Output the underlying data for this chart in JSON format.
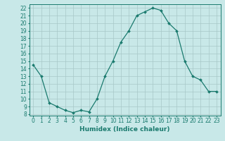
{
  "x": [
    0,
    1,
    2,
    3,
    4,
    5,
    6,
    7,
    8,
    9,
    10,
    11,
    12,
    13,
    14,
    15,
    16,
    17,
    18,
    19,
    20,
    21,
    22,
    23
  ],
  "y": [
    14.5,
    13.0,
    9.5,
    9.0,
    8.5,
    8.2,
    8.5,
    8.3,
    10.0,
    13.0,
    15.0,
    17.5,
    19.0,
    21.0,
    21.5,
    22.0,
    21.7,
    20.0,
    19.0,
    15.0,
    13.0,
    12.5,
    11.0,
    11.0
  ],
  "xlabel": "Humidex (Indice chaleur)",
  "xlim": [
    -0.5,
    23.5
  ],
  "ylim": [
    7.8,
    22.5
  ],
  "yticks": [
    8,
    9,
    10,
    11,
    12,
    13,
    14,
    15,
    16,
    17,
    18,
    19,
    20,
    21,
    22
  ],
  "xticks": [
    0,
    1,
    2,
    3,
    4,
    5,
    6,
    7,
    8,
    9,
    10,
    11,
    12,
    13,
    14,
    15,
    16,
    17,
    18,
    19,
    20,
    21,
    22,
    23
  ],
  "line_color": "#1a7a6e",
  "marker_color": "#1a7a6e",
  "bg_color": "#c8e8e8",
  "grid_color": "#a8c8c8",
  "label_color": "#1a7a6e",
  "tick_color": "#1a7a6e",
  "label_fontsize": 6.5,
  "tick_fontsize": 5.5
}
